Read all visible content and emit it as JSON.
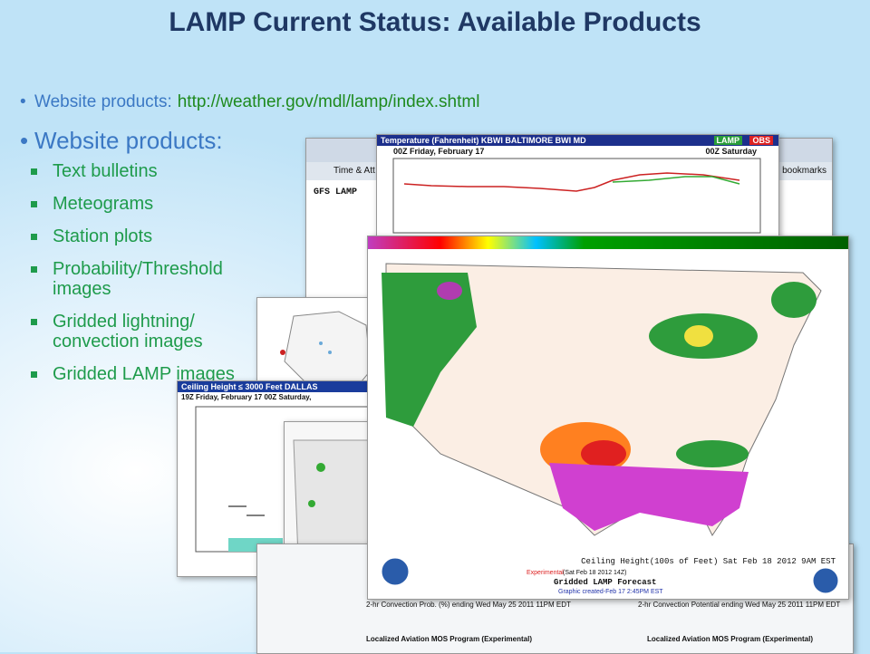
{
  "title": "LAMP Current Status: Available Products",
  "bullet": {
    "label": "Website products:",
    "link": "http://weather.gov/mdl/lamp/index.shtml"
  },
  "heading": "Website products:",
  "items": [
    "Text bulletins",
    "Meteograms",
    "Station plots",
    "Probability/Threshold images",
    "Gridded lightning/ convection images",
    "Gridded LAMP images"
  ],
  "screenshots": {
    "browser": {
      "tab": "Time & Att",
      "bookmarks": "bookmarks",
      "page_title": "GFS LAMP"
    },
    "meteogram": {
      "title": "Temperature (Fahrenheit)   KBWI  BALTIMORE BWI  MD",
      "tag1": "LAMP",
      "tag2": "OBS",
      "left_date": "00Z Friday, February 17",
      "right_date": "00Z Saturday"
    },
    "ceiling_chart": {
      "title": "Ceiling Height ≤ 3000 Feet   DALLAS",
      "left_date": "19Z Friday, February 17",
      "right_date": "00Z Saturday,"
    },
    "gridded_map": {
      "caption": "Ceiling Height(100s of Feet) Sat Feb 18 2012  9AM EST",
      "experimental": "Experimental",
      "issued": "(Sat Feb 18 2012 14Z)",
      "product": "Gridded LAMP Forecast",
      "created": "Graphic created-Feb 17  2:45PM EST"
    },
    "bottom_panels": {
      "left": "2-hr Convection Prob. (%) ending Wed May 25 2011 11PM EDT",
      "right": "2-hr Convection Potential ending Wed May 25 2011 11PM EDT",
      "program": "Localized Aviation MOS Program (Experimental)"
    }
  }
}
